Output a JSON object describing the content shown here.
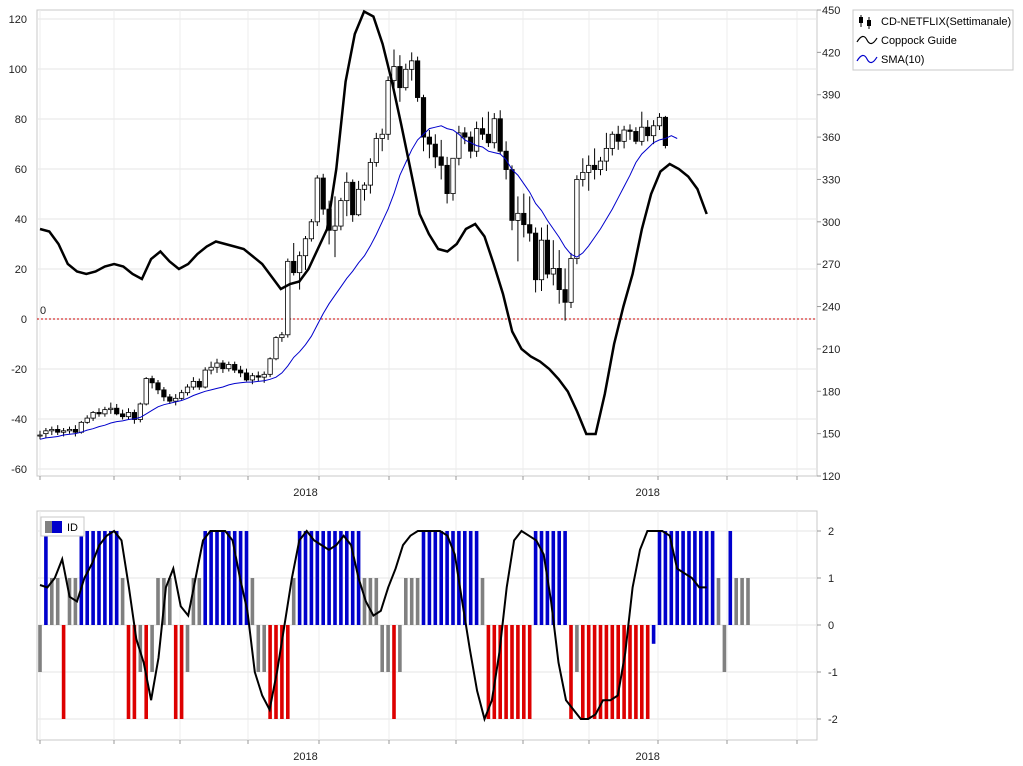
{
  "chart_data": [
    {
      "type": "candlestick",
      "legend": {
        "placement": "top-right",
        "items": [
          {
            "label": "CD-NETFLIX(Settimanale)",
            "kind": "candles",
            "color": "#000000"
          },
          {
            "label": "Coppock Guide",
            "kind": "line",
            "color": "#000000"
          },
          {
            "label": "SMA(10)",
            "kind": "line",
            "color": "#0000cc"
          }
        ]
      },
      "left_axis": {
        "ticks": [
          "120",
          "100",
          "80",
          "60",
          "40",
          "20",
          "0",
          "-20",
          "-40",
          "-60"
        ],
        "range": [
          -60,
          125
        ]
      },
      "right_axis": {
        "ticks": [
          "450",
          "420",
          "390",
          "360",
          "330",
          "300",
          "270",
          "240",
          "210",
          "180",
          "150",
          "120"
        ],
        "range": [
          120,
          450
        ]
      },
      "x_ticks": [
        {
          "label": "2018",
          "week": 45
        },
        {
          "label": "2018",
          "week": 103
        }
      ],
      "zero_line": {
        "value": 0,
        "label": "0",
        "color": "#cc0000"
      },
      "grid": true,
      "candles": [
        {
          "o": 149,
          "h": 152,
          "l": 146,
          "c": 149
        },
        {
          "o": 150,
          "h": 154,
          "l": 147,
          "c": 152
        },
        {
          "o": 152,
          "h": 155,
          "l": 149,
          "c": 153
        },
        {
          "o": 153,
          "h": 156,
          "l": 149,
          "c": 151
        },
        {
          "o": 151,
          "h": 154,
          "l": 148,
          "c": 152
        },
        {
          "o": 152,
          "h": 155,
          "l": 150,
          "c": 153
        },
        {
          "o": 153,
          "h": 156,
          "l": 148,
          "c": 151
        },
        {
          "o": 151,
          "h": 159,
          "l": 150,
          "c": 158
        },
        {
          "o": 158,
          "h": 163,
          "l": 157,
          "c": 161
        },
        {
          "o": 161,
          "h": 166,
          "l": 159,
          "c": 165
        },
        {
          "o": 165,
          "h": 168,
          "l": 162,
          "c": 164
        },
        {
          "o": 164,
          "h": 169,
          "l": 162,
          "c": 167
        },
        {
          "o": 167,
          "h": 172,
          "l": 164,
          "c": 168
        },
        {
          "o": 168,
          "h": 171,
          "l": 163,
          "c": 164
        },
        {
          "o": 164,
          "h": 167,
          "l": 160,
          "c": 162
        },
        {
          "o": 162,
          "h": 168,
          "l": 160,
          "c": 165
        },
        {
          "o": 165,
          "h": 167,
          "l": 157,
          "c": 160
        },
        {
          "o": 160,
          "h": 172,
          "l": 158,
          "c": 171
        },
        {
          "o": 171,
          "h": 190,
          "l": 170,
          "c": 189
        },
        {
          "o": 189,
          "h": 191,
          "l": 182,
          "c": 186
        },
        {
          "o": 186,
          "h": 188,
          "l": 178,
          "c": 181
        },
        {
          "o": 181,
          "h": 183,
          "l": 173,
          "c": 176
        },
        {
          "o": 176,
          "h": 178,
          "l": 171,
          "c": 173
        },
        {
          "o": 173,
          "h": 178,
          "l": 170,
          "c": 175
        },
        {
          "o": 175,
          "h": 181,
          "l": 174,
          "c": 179
        },
        {
          "o": 179,
          "h": 185,
          "l": 177,
          "c": 183
        },
        {
          "o": 183,
          "h": 190,
          "l": 181,
          "c": 187
        },
        {
          "o": 187,
          "h": 189,
          "l": 181,
          "c": 183
        },
        {
          "o": 183,
          "h": 197,
          "l": 182,
          "c": 195
        },
        {
          "o": 195,
          "h": 201,
          "l": 192,
          "c": 197
        },
        {
          "o": 197,
          "h": 203,
          "l": 193,
          "c": 200
        },
        {
          "o": 200,
          "h": 202,
          "l": 193,
          "c": 196
        },
        {
          "o": 196,
          "h": 201,
          "l": 194,
          "c": 199
        },
        {
          "o": 199,
          "h": 201,
          "l": 193,
          "c": 195
        },
        {
          "o": 195,
          "h": 198,
          "l": 190,
          "c": 193
        },
        {
          "o": 193,
          "h": 196,
          "l": 187,
          "c": 188
        },
        {
          "o": 188,
          "h": 193,
          "l": 185,
          "c": 191
        },
        {
          "o": 191,
          "h": 194,
          "l": 187,
          "c": 190
        },
        {
          "o": 190,
          "h": 194,
          "l": 186,
          "c": 192
        },
        {
          "o": 192,
          "h": 204,
          "l": 190,
          "c": 203
        },
        {
          "o": 203,
          "h": 219,
          "l": 202,
          "c": 218
        },
        {
          "o": 218,
          "h": 222,
          "l": 215,
          "c": 220
        },
        {
          "o": 220,
          "h": 274,
          "l": 218,
          "c": 272
        },
        {
          "o": 272,
          "h": 285,
          "l": 262,
          "c": 264
        },
        {
          "o": 264,
          "h": 279,
          "l": 252,
          "c": 276
        },
        {
          "o": 276,
          "h": 290,
          "l": 266,
          "c": 288
        },
        {
          "o": 288,
          "h": 302,
          "l": 286,
          "c": 300
        },
        {
          "o": 300,
          "h": 333,
          "l": 297,
          "c": 331
        },
        {
          "o": 331,
          "h": 334,
          "l": 305,
          "c": 309
        },
        {
          "o": 309,
          "h": 315,
          "l": 284,
          "c": 294
        },
        {
          "o": 294,
          "h": 318,
          "l": 275,
          "c": 297
        },
        {
          "o": 297,
          "h": 317,
          "l": 294,
          "c": 315
        },
        {
          "o": 315,
          "h": 335,
          "l": 304,
          "c": 328
        },
        {
          "o": 328,
          "h": 330,
          "l": 300,
          "c": 305
        },
        {
          "o": 305,
          "h": 329,
          "l": 304,
          "c": 323
        },
        {
          "o": 323,
          "h": 328,
          "l": 315,
          "c": 326
        },
        {
          "o": 326,
          "h": 345,
          "l": 320,
          "c": 342
        },
        {
          "o": 342,
          "h": 363,
          "l": 339,
          "c": 359
        },
        {
          "o": 359,
          "h": 366,
          "l": 350,
          "c": 362
        },
        {
          "o": 362,
          "h": 403,
          "l": 358,
          "c": 400
        },
        {
          "o": 400,
          "h": 422,
          "l": 395,
          "c": 410
        },
        {
          "o": 410,
          "h": 418,
          "l": 385,
          "c": 395
        },
        {
          "o": 395,
          "h": 412,
          "l": 393,
          "c": 408
        },
        {
          "o": 408,
          "h": 420,
          "l": 400,
          "c": 414
        },
        {
          "o": 414,
          "h": 417,
          "l": 385,
          "c": 388
        },
        {
          "o": 388,
          "h": 390,
          "l": 350,
          "c": 360
        },
        {
          "o": 360,
          "h": 365,
          "l": 345,
          "c": 355
        },
        {
          "o": 355,
          "h": 362,
          "l": 338,
          "c": 346
        },
        {
          "o": 346,
          "h": 358,
          "l": 330,
          "c": 340
        },
        {
          "o": 340,
          "h": 346,
          "l": 313,
          "c": 320
        },
        {
          "o": 320,
          "h": 345,
          "l": 315,
          "c": 345
        },
        {
          "o": 345,
          "h": 368,
          "l": 340,
          "c": 363
        },
        {
          "o": 363,
          "h": 367,
          "l": 355,
          "c": 360
        },
        {
          "o": 360,
          "h": 364,
          "l": 345,
          "c": 350
        },
        {
          "o": 350,
          "h": 371,
          "l": 346,
          "c": 366
        },
        {
          "o": 366,
          "h": 374,
          "l": 358,
          "c": 362
        },
        {
          "o": 362,
          "h": 378,
          "l": 353,
          "c": 356
        },
        {
          "o": 356,
          "h": 377,
          "l": 352,
          "c": 373
        },
        {
          "o": 373,
          "h": 379,
          "l": 348,
          "c": 350
        },
        {
          "o": 350,
          "h": 357,
          "l": 330,
          "c": 337
        },
        {
          "o": 337,
          "h": 340,
          "l": 294,
          "c": 301
        },
        {
          "o": 301,
          "h": 318,
          "l": 272,
          "c": 306
        },
        {
          "o": 306,
          "h": 320,
          "l": 289,
          "c": 298
        },
        {
          "o": 298,
          "h": 318,
          "l": 286,
          "c": 292
        },
        {
          "o": 292,
          "h": 296,
          "l": 250,
          "c": 259
        },
        {
          "o": 259,
          "h": 296,
          "l": 251,
          "c": 287
        },
        {
          "o": 287,
          "h": 298,
          "l": 260,
          "c": 263
        },
        {
          "o": 263,
          "h": 287,
          "l": 255,
          "c": 267
        },
        {
          "o": 267,
          "h": 280,
          "l": 242,
          "c": 252
        },
        {
          "o": 252,
          "h": 267,
          "l": 230,
          "c": 243
        },
        {
          "o": 243,
          "h": 278,
          "l": 239,
          "c": 274
        },
        {
          "o": 274,
          "h": 333,
          "l": 270,
          "c": 330
        },
        {
          "o": 330,
          "h": 345,
          "l": 325,
          "c": 335
        },
        {
          "o": 335,
          "h": 347,
          "l": 322,
          "c": 340
        },
        {
          "o": 340,
          "h": 352,
          "l": 330,
          "c": 337
        },
        {
          "o": 337,
          "h": 346,
          "l": 333,
          "c": 343
        },
        {
          "o": 343,
          "h": 363,
          "l": 336,
          "c": 352
        },
        {
          "o": 352,
          "h": 364,
          "l": 347,
          "c": 362
        },
        {
          "o": 362,
          "h": 368,
          "l": 351,
          "c": 357
        },
        {
          "o": 357,
          "h": 368,
          "l": 352,
          "c": 365
        },
        {
          "o": 365,
          "h": 369,
          "l": 358,
          "c": 364
        },
        {
          "o": 364,
          "h": 367,
          "l": 355,
          "c": 357
        },
        {
          "o": 357,
          "h": 378,
          "l": 354,
          "c": 367
        },
        {
          "o": 367,
          "h": 372,
          "l": 357,
          "c": 361
        },
        {
          "o": 361,
          "h": 372,
          "l": 355,
          "c": 368
        },
        {
          "o": 368,
          "h": 377,
          "l": 365,
          "c": 374
        },
        {
          "o": 374,
          "h": 375,
          "l": 352,
          "c": 354
        }
      ],
      "sma10": [
        146,
        147,
        147.5,
        148,
        149,
        149.5,
        150,
        151,
        152.5,
        153.5,
        155,
        156,
        157.5,
        158.5,
        159,
        160,
        160.5,
        161.5,
        164,
        166.5,
        169,
        170.5,
        171.5,
        172.5,
        173.5,
        175,
        177,
        178.5,
        180,
        181,
        182,
        183,
        184.5,
        185.5,
        186,
        186.5,
        186.5,
        187,
        187.5,
        188.5,
        190,
        193,
        198,
        204,
        208,
        213,
        219,
        227,
        235,
        242,
        248,
        254,
        260,
        265,
        271,
        276,
        283,
        291,
        300,
        309,
        320,
        333,
        342,
        351,
        358,
        362,
        366,
        367,
        368,
        366,
        365,
        362,
        358,
        356,
        354,
        353,
        350,
        349,
        348,
        344,
        337,
        333,
        327,
        321,
        313,
        308,
        301,
        295,
        289,
        282,
        277,
        275,
        278,
        283,
        289,
        295,
        302,
        309,
        317,
        325,
        333,
        342,
        348,
        352,
        356,
        358,
        359,
        361,
        359
      ]
    },
    {
      "type": "bar",
      "legend": {
        "placement": "top-left",
        "items": [
          {
            "label": "ID",
            "kind": "bars"
          }
        ]
      },
      "y_ticks": [
        "2",
        "1",
        "0",
        "-1",
        "-2"
      ],
      "ylim": [
        -2.2,
        2.2
      ],
      "x_ticks": [
        {
          "label": "2018",
          "week": 45
        },
        {
          "label": "2018",
          "week": 103
        }
      ],
      "grid": true,
      "colors": {
        "positive_strong": "#0000cc",
        "neutral": "#808080",
        "negative_strong": "#dd0000"
      },
      "bars": [
        -1,
        2,
        1,
        1,
        -2,
        1,
        1,
        2,
        2,
        2,
        2,
        2,
        2,
        2,
        1,
        -2,
        -2,
        -1,
        -2,
        -1,
        1,
        1,
        1,
        -2,
        -2,
        -1,
        1,
        1,
        2,
        2,
        2,
        2,
        2,
        2,
        2,
        2,
        1,
        -1,
        -1,
        -2,
        -2,
        -2,
        -2,
        1,
        2,
        2,
        2,
        2,
        2,
        2,
        2,
        2,
        2,
        2,
        2,
        1,
        1,
        1,
        -1,
        -1,
        -2,
        -1,
        1,
        1,
        1,
        2,
        2,
        2,
        2,
        2,
        2,
        2,
        2,
        2,
        2,
        1,
        -2,
        -2,
        -2,
        -2,
        -2,
        -2,
        -2,
        -2,
        2,
        2,
        2,
        2,
        2,
        2,
        -2,
        -1,
        -2,
        -2,
        -2,
        -2,
        -2,
        -2,
        -2,
        -2,
        -2,
        -2,
        -2,
        -2,
        -0.4,
        2,
        2,
        2,
        2,
        2,
        2,
        2,
        2,
        2,
        2,
        1,
        -1,
        2,
        1,
        1,
        1
      ],
      "coppock_guide": [
        0.85,
        0.8,
        1.0,
        1.4,
        0.6,
        0.5,
        1.0,
        1.3,
        1.7,
        1.9,
        2.0,
        1.8,
        0.8,
        -0.3,
        -0.8,
        -1.6,
        -0.7,
        0.8,
        1.2,
        0.4,
        0.2,
        1.0,
        1.8,
        2.0,
        2.0,
        2.0,
        1.8,
        1.0,
        0.3,
        -1.0,
        -1.5,
        -1.8,
        -1.0,
        0.0,
        1.0,
        1.8,
        2.0,
        1.8,
        1.7,
        1.6,
        1.7,
        1.9,
        1.7,
        1.0,
        0.5,
        0.2,
        0.3,
        0.8,
        1.2,
        1.7,
        1.9,
        2.0,
        2.0,
        2.0,
        2.0,
        1.9,
        1.5,
        0.5,
        -0.5,
        -1.4,
        -2.0,
        -1.6,
        -0.6,
        0.8,
        1.8,
        2.0,
        1.9,
        1.8,
        1.5,
        0.5,
        -0.8,
        -1.6,
        -1.8,
        -2.0,
        -2.0,
        -1.9,
        -1.6,
        -1.6,
        -1.5,
        -0.6,
        0.8,
        1.6,
        2.0,
        2.0,
        2.0,
        1.9,
        1.2,
        1.1,
        1.0,
        0.8,
        0.8
      ]
    }
  ]
}
